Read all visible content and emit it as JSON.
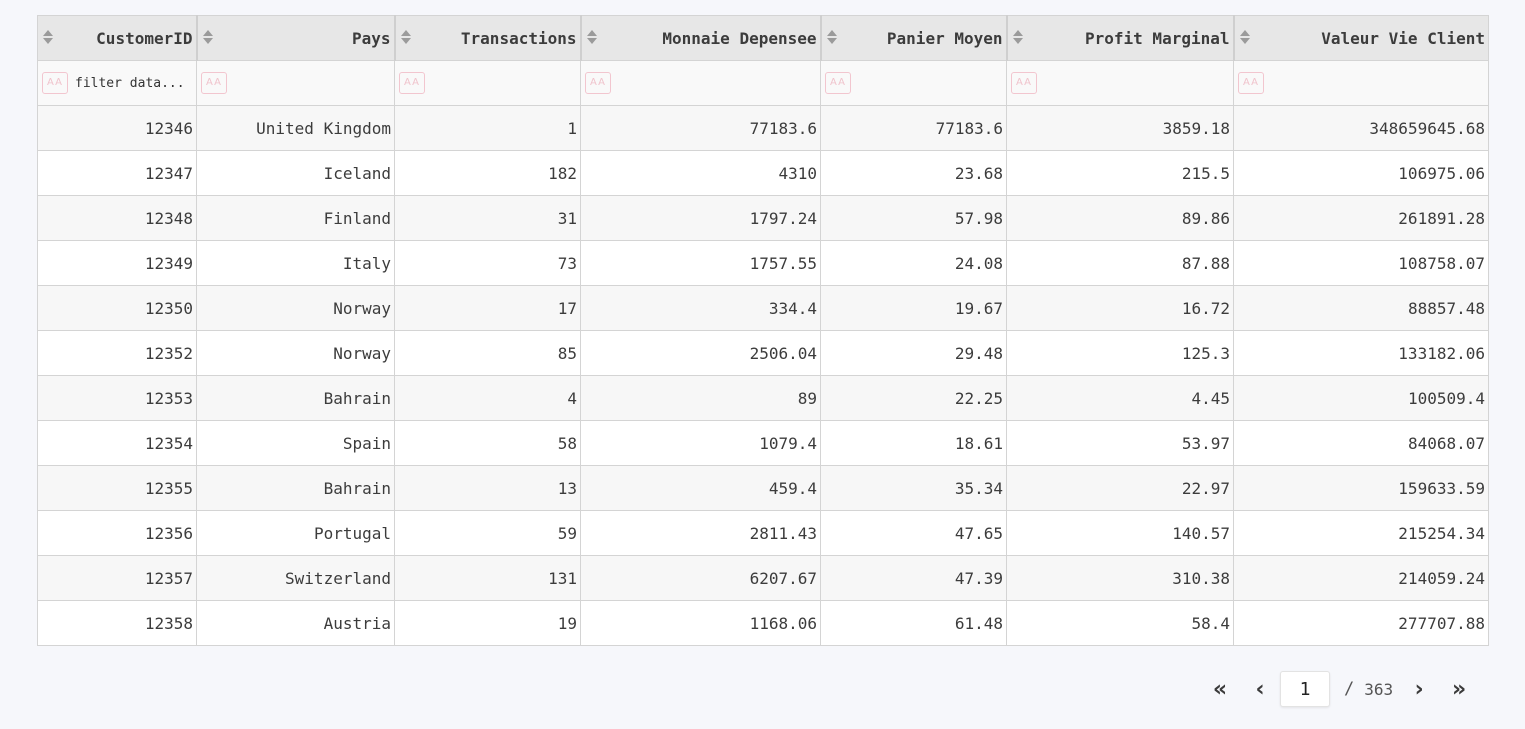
{
  "table": {
    "columns": [
      "CustomerID",
      "Pays",
      "Transactions",
      "Monnaie Depensee",
      "Panier Moyen",
      "Profit Marginal",
      "Valeur Vie Client"
    ],
    "filter": {
      "case_label": "AA",
      "placeholder": "filter data..."
    },
    "rows": [
      [
        "12346",
        "United Kingdom",
        "1",
        "77183.6",
        "77183.6",
        "3859.18",
        "348659645.68"
      ],
      [
        "12347",
        "Iceland",
        "182",
        "4310",
        "23.68",
        "215.5",
        "106975.06"
      ],
      [
        "12348",
        "Finland",
        "31",
        "1797.24",
        "57.98",
        "89.86",
        "261891.28"
      ],
      [
        "12349",
        "Italy",
        "73",
        "1757.55",
        "24.08",
        "87.88",
        "108758.07"
      ],
      [
        "12350",
        "Norway",
        "17",
        "334.4",
        "19.67",
        "16.72",
        "88857.48"
      ],
      [
        "12352",
        "Norway",
        "85",
        "2506.04",
        "29.48",
        "125.3",
        "133182.06"
      ],
      [
        "12353",
        "Bahrain",
        "4",
        "89",
        "22.25",
        "4.45",
        "100509.4"
      ],
      [
        "12354",
        "Spain",
        "58",
        "1079.4",
        "18.61",
        "53.97",
        "84068.07"
      ],
      [
        "12355",
        "Bahrain",
        "13",
        "459.4",
        "35.34",
        "22.97",
        "159633.59"
      ],
      [
        "12356",
        "Portugal",
        "59",
        "2811.43",
        "47.65",
        "140.57",
        "215254.34"
      ],
      [
        "12357",
        "Switzerland",
        "131",
        "6207.67",
        "47.39",
        "310.38",
        "214059.24"
      ],
      [
        "12358",
        "Austria",
        "19",
        "1168.06",
        "61.48",
        "58.4",
        "277707.88"
      ]
    ]
  },
  "pagination": {
    "first_icon": "«",
    "prev_icon": "‹",
    "next_icon": "›",
    "last_icon": "»",
    "current_page": "1",
    "separator": "/",
    "total_pages": "363"
  }
}
